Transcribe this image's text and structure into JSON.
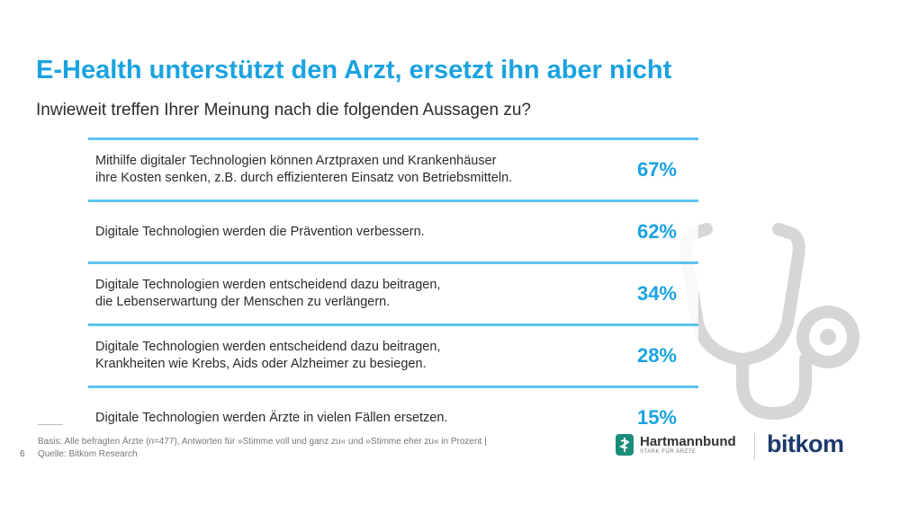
{
  "title": "E-Health unterstützt den Arzt, ersetzt ihn aber nicht",
  "subtitle": "Inwieweit treffen Ihrer Meinung nach die folgenden Aussagen zu?",
  "chart_data": {
    "type": "table",
    "title": "E-Health unterstützt den Arzt, ersetzt ihn aber nicht",
    "subtitle": "Inwieweit treffen Ihrer Meinung nach die folgenden Aussagen zu?",
    "rows": [
      {
        "statement": "Mithilfe digitaler Technologien können Arztpraxen und Krankenhäuser\nihre Kosten senken, z.B. durch effizienteren Einsatz von Betriebsmitteln.",
        "value": 67,
        "label": "67%"
      },
      {
        "statement": "Digitale Technologien werden die Prävention verbessern.",
        "value": 62,
        "label": "62%"
      },
      {
        "statement": "Digitale Technologien werden entscheidend dazu beitragen,\ndie Lebenserwartung der Menschen zu verlängern.",
        "value": 34,
        "label": "34%"
      },
      {
        "statement": "Digitale Technologien werden entscheidend dazu beitragen,\nKrankheiten wie Krebs, Aids oder Alzheimer zu besiegen.",
        "value": 28,
        "label": "28%"
      },
      {
        "statement": "Digitale Technologien werden Ärzte in vielen Fällen ersetzen.",
        "value": 15,
        "label": "15%"
      }
    ]
  },
  "footer": {
    "page_number": "6",
    "note": "Basis: Alle befragten Ärzte (n=477), Antworten für »Stimme voll und ganz zu« und »Stimme eher zu« in Prozent  |\nQuelle: Bitkom Research"
  },
  "logos": {
    "hartmannbund_name": "Hartmannbund",
    "hartmannbund_tagline": "STARK FÜR ÄRZTE",
    "bitkom": "bitkom"
  },
  "colors": {
    "accent": "#1aa3e0",
    "row_line": "#5bc4ef",
    "stethoscope": "#d6d6d6",
    "bitkom": "#1d3a6b",
    "hartmannbund_icon": "#1a8c7a"
  },
  "icons": [
    "stethoscope-icon",
    "hartmannbund-logo-icon"
  ]
}
